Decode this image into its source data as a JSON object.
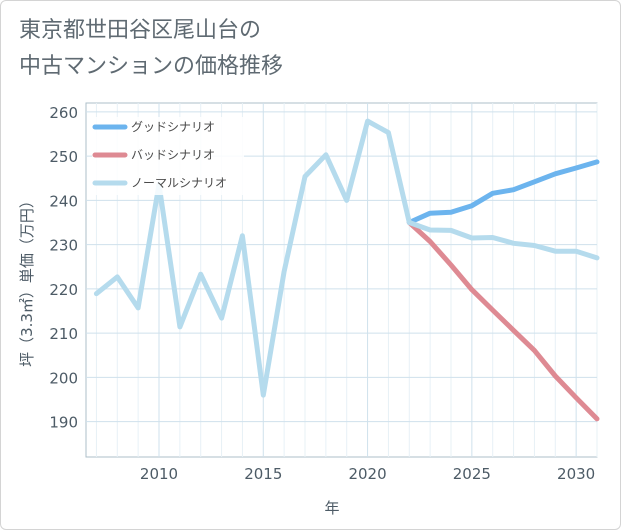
{
  "chart_data": {
    "type": "line",
    "title_lines": [
      "東京都世田谷区尾山台の",
      "中古マンションの価格推移"
    ],
    "xlabel": "年",
    "ylabel": "坪（3.3㎡）単価（万円）",
    "xlim": [
      2006.5,
      2031
    ],
    "ylim": [
      182,
      262
    ],
    "x_ticks": [
      2010,
      2015,
      2020,
      2025,
      2030
    ],
    "y_ticks": [
      190,
      200,
      210,
      220,
      230,
      240,
      250,
      260
    ],
    "grid": true,
    "legend_position": "top-left",
    "series": [
      {
        "name": "グッドシナリオ",
        "color": "#6cb4ee",
        "x": [
          2022,
          2023,
          2024,
          2025,
          2026,
          2027,
          2028,
          2029,
          2030,
          2031
        ],
        "values": [
          235,
          237.1,
          237.3,
          238.8,
          241.6,
          242.4,
          244.2,
          246,
          247.3,
          248.7
        ]
      },
      {
        "name": "バッドシナリオ",
        "color": "#de8a93",
        "x": [
          2022,
          2023,
          2024,
          2025,
          2026,
          2027,
          2028,
          2029,
          2030,
          2031
        ],
        "values": [
          235,
          230.7,
          225.4,
          219.8,
          215.2,
          210.6,
          206.1,
          200.3,
          195.4,
          190.6
        ]
      },
      {
        "name": "ノーマルシナリオ",
        "color": "#b5dbed",
        "x": [
          2007,
          2008,
          2009,
          2010,
          2011,
          2012,
          2013,
          2014,
          2015,
          2016,
          2017,
          2018,
          2019,
          2020,
          2021,
          2022,
          2023,
          2024,
          2025,
          2026,
          2027,
          2028,
          2029,
          2030,
          2031
        ],
        "values": [
          218.9,
          222.7,
          215.7,
          243.6,
          211.4,
          223.3,
          213.4,
          232,
          196,
          223.9,
          245.4,
          250.3,
          240,
          257.9,
          255.3,
          235,
          233.3,
          233.2,
          231.5,
          231.6,
          230.3,
          229.8,
          228.5,
          228.5,
          227
        ]
      }
    ]
  }
}
